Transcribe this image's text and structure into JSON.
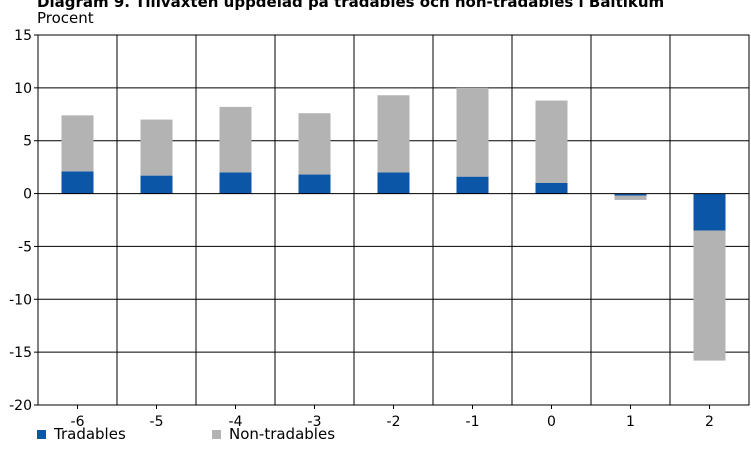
{
  "chart_data": {
    "type": "bar",
    "stacked": true,
    "title": "Diagram 9. Tillväxten uppdelad på tradables och non-tradables i Baltikum",
    "y_unit_label": "Procent",
    "xlabel": "",
    "ylabel": "",
    "categories": [
      "-6",
      "-5",
      "-4",
      "-3",
      "-2",
      "-1",
      "0",
      "1",
      "2"
    ],
    "ylim": [
      -20,
      15
    ],
    "yticks": [
      15,
      10,
      5,
      0,
      -5,
      -10,
      -15,
      -20
    ],
    "grid": true,
    "legend_position": "bottom-left",
    "series": [
      {
        "name": "Tradables",
        "color": "#0b56a6",
        "values": [
          2.1,
          1.7,
          2.0,
          1.8,
          2.0,
          1.6,
          1.0,
          -0.2,
          -3.5
        ]
      },
      {
        "name": "Non-tradables",
        "color": "#b3b3b3",
        "values": [
          5.3,
          5.3,
          6.2,
          5.8,
          7.3,
          8.4,
          7.8,
          -0.4,
          -12.3
        ]
      }
    ]
  }
}
